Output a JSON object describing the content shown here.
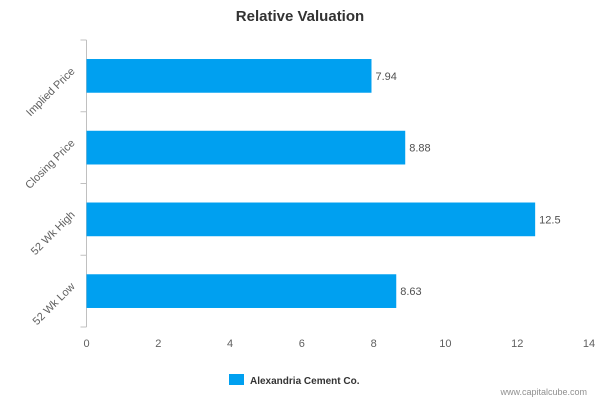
{
  "chart_data": {
    "type": "bar",
    "orientation": "horizontal",
    "title": "Relative Valuation",
    "categories": [
      "Implied Price",
      "Closing Price",
      "52 Wk High",
      "52 Wk Low"
    ],
    "series": [
      {
        "name": "Alexandria Cement Co.",
        "values": [
          7.94,
          8.88,
          12.5,
          8.63
        ],
        "value_labels": [
          "7.94",
          "8.88",
          "12.5",
          "8.63"
        ],
        "color": "#00a0f0"
      }
    ],
    "xlim": [
      0,
      14
    ],
    "xticks": [
      0,
      2,
      4,
      6,
      8,
      10,
      12,
      14
    ],
    "grid": false,
    "legend": "bottom-center"
  },
  "credit": "www.capitalcube.com"
}
